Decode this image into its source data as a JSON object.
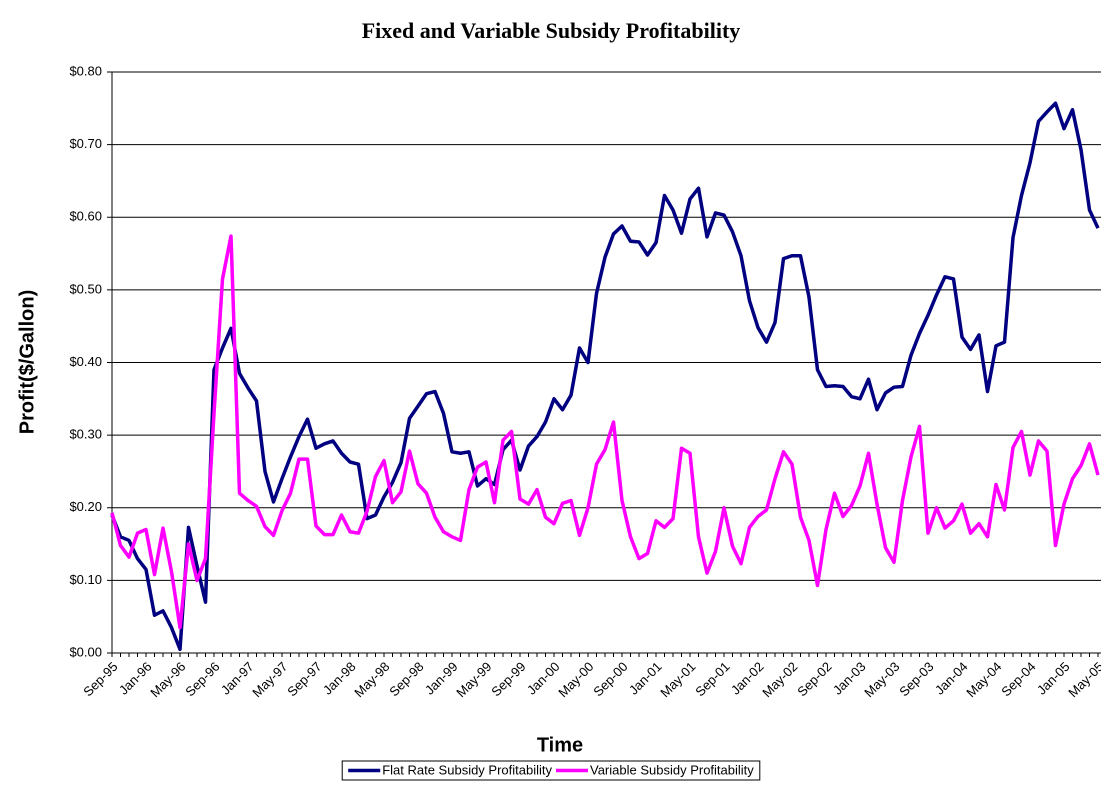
{
  "chart_data": {
    "type": "line",
    "title": "Fixed and Variable Subsidy Profitability",
    "x_label": "Time",
    "y_label": "Profit($/Gallon)",
    "categories": [
      "Sep-95",
      null,
      null,
      null,
      "Jan-96",
      null,
      null,
      null,
      "May-96",
      null,
      null,
      null,
      "Sep-96",
      null,
      null,
      null,
      "Jan-97",
      null,
      null,
      null,
      "May-97",
      null,
      null,
      null,
      "Sep-97",
      null,
      null,
      null,
      "Jan-98",
      null,
      null,
      null,
      "May-98",
      null,
      null,
      null,
      "Sep-98",
      null,
      null,
      null,
      "Jan-99",
      null,
      null,
      null,
      "May-99",
      null,
      null,
      null,
      "Sep-99",
      null,
      null,
      null,
      "Jan-00",
      null,
      null,
      null,
      "May-00",
      null,
      null,
      null,
      "Sep-00",
      null,
      null,
      null,
      "Jan-01",
      null,
      null,
      null,
      "May-01",
      null,
      null,
      null,
      "Sep-01",
      null,
      null,
      null,
      "Jan-02",
      null,
      null,
      null,
      "May-02",
      null,
      null,
      null,
      "Sep-02",
      null,
      null,
      null,
      "Jan-03",
      null,
      null,
      null,
      "May-03",
      null,
      null,
      null,
      "Sep-03",
      null,
      null,
      null,
      "Jan-04",
      null,
      null,
      null,
      "May-04",
      null,
      null,
      null,
      "Sep-04",
      null,
      null,
      null,
      "Jan-05",
      null,
      null,
      null,
      "May-05"
    ],
    "series": [
      {
        "name": "Flat Rate Subsidy Profitability",
        "color": "#000080",
        "values": [
          0.19,
          0.16,
          0.155,
          0.13,
          0.115,
          0.052,
          0.058,
          0.035,
          0.005,
          0.173,
          0.12,
          0.07,
          0.39,
          0.42,
          0.447,
          0.385,
          0.365,
          0.347,
          0.25,
          0.208,
          0.24,
          0.27,
          0.298,
          0.322,
          0.282,
          0.288,
          0.292,
          0.275,
          0.263,
          0.26,
          0.185,
          0.19,
          0.215,
          0.235,
          0.262,
          0.323,
          0.34,
          0.357,
          0.36,
          0.33,
          0.277,
          0.275,
          0.277,
          0.23,
          0.24,
          0.232,
          0.28,
          0.293,
          0.252,
          0.285,
          0.298,
          0.318,
          0.35,
          0.335,
          0.355,
          0.42,
          0.4,
          0.495,
          0.545,
          0.577,
          0.588,
          0.567,
          0.566,
          0.548,
          0.565,
          0.63,
          0.61,
          0.578,
          0.625,
          0.64,
          0.573,
          0.606,
          0.603,
          0.58,
          0.547,
          0.485,
          0.448,
          0.428,
          0.455,
          0.543,
          0.547,
          0.547,
          0.49,
          0.39,
          0.367,
          0.368,
          0.367,
          0.353,
          0.35,
          0.377,
          0.335,
          0.358,
          0.366,
          0.367,
          0.41,
          0.44,
          0.465,
          0.493,
          0.518,
          0.515,
          0.435,
          0.418,
          0.438,
          0.36,
          0.423,
          0.428,
          0.572,
          0.63,
          0.675,
          0.732,
          0.745,
          0.757,
          0.722,
          0.748,
          0.693,
          0.61,
          0.585
        ]
      },
      {
        "name": "Variable Subsidy Profitability",
        "color": "#FF00FF",
        "values": [
          0.193,
          0.148,
          0.132,
          0.165,
          0.17,
          0.108,
          0.172,
          0.112,
          0.035,
          0.15,
          0.1,
          0.13,
          0.33,
          0.515,
          0.574,
          0.22,
          0.21,
          0.202,
          0.174,
          0.162,
          0.196,
          0.22,
          0.267,
          0.267,
          0.175,
          0.163,
          0.163,
          0.19,
          0.167,
          0.165,
          0.195,
          0.243,
          0.265,
          0.207,
          0.222,
          0.278,
          0.233,
          0.22,
          0.187,
          0.167,
          0.16,
          0.155,
          0.225,
          0.256,
          0.263,
          0.207,
          0.293,
          0.305,
          0.212,
          0.205,
          0.225,
          0.187,
          0.178,
          0.206,
          0.21,
          0.162,
          0.2,
          0.26,
          0.28,
          0.318,
          0.21,
          0.16,
          0.13,
          0.137,
          0.182,
          0.173,
          0.185,
          0.282,
          0.275,
          0.16,
          0.11,
          0.14,
          0.2,
          0.147,
          0.123,
          0.173,
          0.188,
          0.197,
          0.24,
          0.277,
          0.26,
          0.187,
          0.155,
          0.093,
          0.17,
          0.22,
          0.188,
          0.203,
          0.23,
          0.275,
          0.205,
          0.145,
          0.125,
          0.21,
          0.27,
          0.312,
          0.165,
          0.2,
          0.172,
          0.182,
          0.205,
          0.165,
          0.178,
          0.16,
          0.232,
          0.197,
          0.283,
          0.305,
          0.245,
          0.292,
          0.278,
          0.148,
          0.205,
          0.24,
          0.258,
          0.288,
          0.245
        ]
      }
    ],
    "ylim": [
      0,
      0.8
    ],
    "yticks": [
      {
        "value": 0,
        "label": "$0.00"
      },
      {
        "value": 0.1,
        "label": "$0.10"
      },
      {
        "value": 0.2,
        "label": "$0.20"
      },
      {
        "value": 0.3,
        "label": "$0.30"
      },
      {
        "value": 0.4,
        "label": "$0.40"
      },
      {
        "value": 0.5,
        "label": "$0.50"
      },
      {
        "value": 0.6,
        "label": "$0.60"
      },
      {
        "value": 0.7,
        "label": "$0.70"
      },
      {
        "value": 0.8,
        "label": "$0.80"
      }
    ],
    "grid": true,
    "legend": "bottom"
  }
}
